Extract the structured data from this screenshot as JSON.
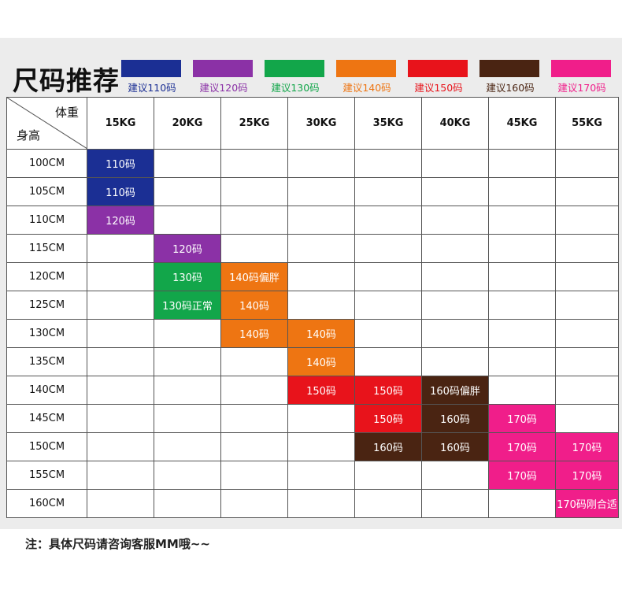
{
  "title": "尺码推荐",
  "legend": [
    {
      "label": "建议110码",
      "color": "#1b2f94"
    },
    {
      "label": "建议120码",
      "color": "#8b31a6"
    },
    {
      "label": "建议130码",
      "color": "#12a64a"
    },
    {
      "label": "建议140码",
      "color": "#ee7512"
    },
    {
      "label": "建议150码",
      "color": "#e8131b"
    },
    {
      "label": "建议160码",
      "color": "#4a2412"
    },
    {
      "label": "建议170码",
      "color": "#f01e8a"
    }
  ],
  "table": {
    "corner_weight": "体重",
    "corner_height": "身高",
    "weights": [
      "15KG",
      "20KG",
      "25KG",
      "30KG",
      "35KG",
      "40KG",
      "45KG",
      "55KG"
    ],
    "rows": [
      {
        "height": "100CM",
        "cells": [
          {
            "col": 0,
            "text": "110码",
            "size": 0
          }
        ]
      },
      {
        "height": "105CM",
        "cells": [
          {
            "col": 0,
            "text": "110码",
            "size": 0
          }
        ]
      },
      {
        "height": "110CM",
        "cells": [
          {
            "col": 0,
            "text": "120码",
            "size": 1
          }
        ]
      },
      {
        "height": "115CM",
        "cells": [
          {
            "col": 1,
            "text": "120码",
            "size": 1
          }
        ]
      },
      {
        "height": "120CM",
        "cells": [
          {
            "col": 1,
            "text": "130码",
            "size": 2
          },
          {
            "col": 2,
            "text": "140码偏胖",
            "size": 3
          }
        ]
      },
      {
        "height": "125CM",
        "cells": [
          {
            "col": 1,
            "text": "130码正常",
            "size": 2
          },
          {
            "col": 2,
            "text": "140码",
            "size": 3
          }
        ]
      },
      {
        "height": "130CM",
        "cells": [
          {
            "col": 2,
            "text": "140码",
            "size": 3
          },
          {
            "col": 3,
            "text": "140码",
            "size": 3
          }
        ]
      },
      {
        "height": "135CM",
        "cells": [
          {
            "col": 3,
            "text": "140码",
            "size": 3
          }
        ]
      },
      {
        "height": "140CM",
        "cells": [
          {
            "col": 3,
            "text": "150码",
            "size": 4
          },
          {
            "col": 4,
            "text": "150码",
            "size": 4
          },
          {
            "col": 5,
            "text": "160码偏胖",
            "size": 5
          }
        ]
      },
      {
        "height": "145CM",
        "cells": [
          {
            "col": 4,
            "text": "150码",
            "size": 4
          },
          {
            "col": 5,
            "text": "160码",
            "size": 5
          },
          {
            "col": 6,
            "text": "170码",
            "size": 6
          }
        ]
      },
      {
        "height": "150CM",
        "cells": [
          {
            "col": 4,
            "text": "160码",
            "size": 5
          },
          {
            "col": 5,
            "text": "160码",
            "size": 5
          },
          {
            "col": 6,
            "text": "170码",
            "size": 6
          },
          {
            "col": 7,
            "text": "170码",
            "size": 6
          }
        ]
      },
      {
        "height": "155CM",
        "cells": [
          {
            "col": 6,
            "text": "170码",
            "size": 6
          },
          {
            "col": 7,
            "text": "170码",
            "size": 6
          }
        ]
      },
      {
        "height": "160CM",
        "cells": [
          {
            "col": 7,
            "text": "170码刚合适",
            "size": 6
          }
        ]
      }
    ]
  },
  "note": "注：具体尺码请咨询客服MM哦~~"
}
